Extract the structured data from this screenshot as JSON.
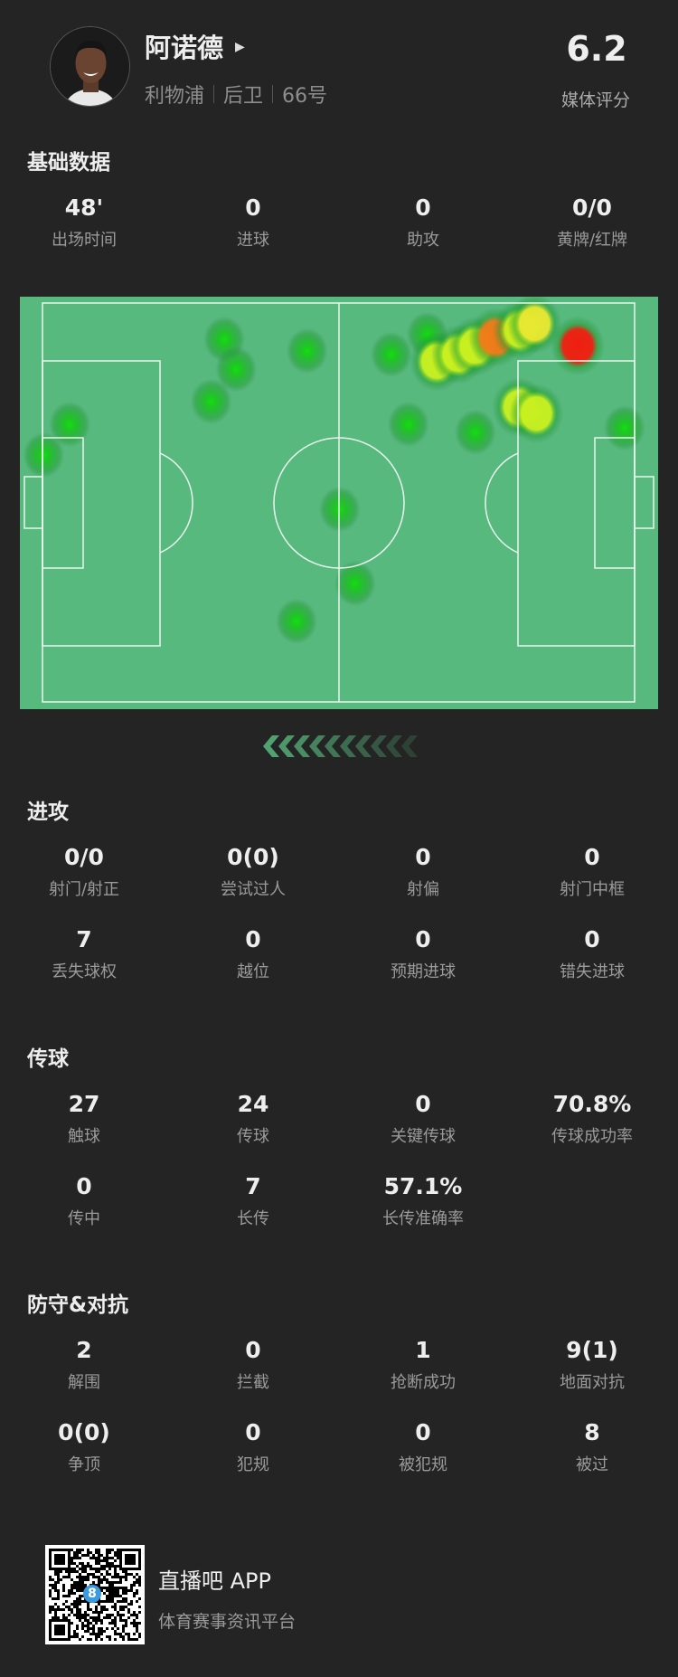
{
  "player": {
    "name": "阿诺德",
    "team": "利物浦",
    "position": "后卫",
    "number": "66号",
    "rating": "6.2",
    "rating_label": "媒体评分"
  },
  "sections": [
    {
      "title": "基础数据",
      "stats": [
        {
          "value": "48'",
          "label": "出场时间"
        },
        {
          "value": "0",
          "label": "进球"
        },
        {
          "value": "0",
          "label": "助攻"
        },
        {
          "value": "0/0",
          "label": "黄牌/红牌"
        }
      ]
    },
    {
      "title": "进攻",
      "stats": [
        {
          "value": "0/0",
          "label": "射门/射正"
        },
        {
          "value": "0(0)",
          "label": "尝试过人"
        },
        {
          "value": "0",
          "label": "射偏"
        },
        {
          "value": "0",
          "label": "射门中框"
        },
        {
          "value": "7",
          "label": "丢失球权"
        },
        {
          "value": "0",
          "label": "越位"
        },
        {
          "value": "0",
          "label": "预期进球"
        },
        {
          "value": "0",
          "label": "错失进球"
        }
      ]
    },
    {
      "title": "传球",
      "stats": [
        {
          "value": "27",
          "label": "触球"
        },
        {
          "value": "24",
          "label": "传球"
        },
        {
          "value": "0",
          "label": "关键传球"
        },
        {
          "value": "70.8%",
          "label": "传球成功率"
        },
        {
          "value": "0",
          "label": "传中"
        },
        {
          "value": "7",
          "label": "长传"
        },
        {
          "value": "57.1%",
          "label": "长传准确率"
        }
      ]
    },
    {
      "title": "防守&对抗",
      "stats": [
        {
          "value": "2",
          "label": "解围"
        },
        {
          "value": "0",
          "label": "拦截"
        },
        {
          "value": "1",
          "label": "抢断成功"
        },
        {
          "value": "9(1)",
          "label": "地面对抗"
        },
        {
          "value": "0(0)",
          "label": "争顶"
        },
        {
          "value": "0",
          "label": "犯规"
        },
        {
          "value": "0",
          "label": "被犯规"
        },
        {
          "value": "8",
          "label": "被过"
        }
      ]
    }
  ],
  "heatmap": {
    "pitch_color": "#58b97f",
    "points": [
      [
        30.7,
        9.1,
        0.3
      ],
      [
        32.7,
        16.6,
        0.3
      ],
      [
        28.5,
        24.7,
        0.3
      ],
      [
        44.7,
        12.0,
        0.3
      ],
      [
        4.6,
        30.4,
        0.3
      ],
      [
        0.2,
        38.1,
        0.3
      ],
      [
        50.2,
        51.7,
        0.3
      ],
      [
        52.8,
        70.3,
        0.3
      ],
      [
        42.9,
        79.8,
        0.3
      ],
      [
        58.9,
        12.9,
        0.3
      ],
      [
        65.0,
        7.9,
        0.3
      ],
      [
        61.8,
        30.4,
        0.3
      ],
      [
        73.1,
        32.4,
        0.35
      ],
      [
        98.3,
        31.3,
        0.3
      ],
      [
        80.5,
        26.1,
        0.6
      ],
      [
        83.4,
        27.7,
        0.6
      ],
      [
        66.6,
        14.7,
        0.55
      ],
      [
        70.2,
        12.9,
        0.6
      ],
      [
        73.1,
        10.9,
        0.6
      ],
      [
        76.5,
        8.6,
        0.85
      ],
      [
        80.6,
        6.8,
        0.6
      ],
      [
        83.1,
        5.2,
        0.7
      ],
      [
        90.4,
        10.7,
        1.0
      ]
    ]
  },
  "footer": {
    "app_title": "直播吧 APP",
    "app_subtitle": "体育赛事资讯平台",
    "qr_badge": "8"
  }
}
